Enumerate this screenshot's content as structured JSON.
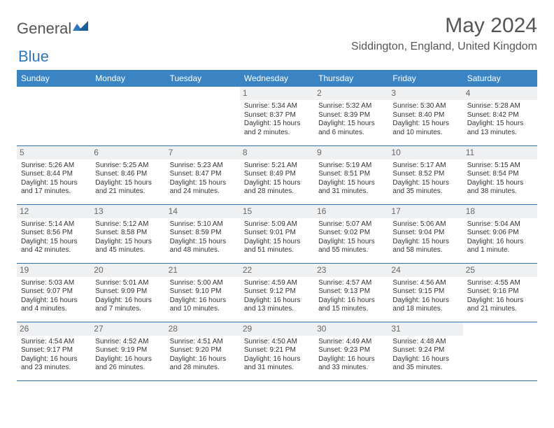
{
  "brand": {
    "word1": "General",
    "word2": "Blue"
  },
  "header": {
    "month_title": "May 2024",
    "location": "Siddington, England, United Kingdom"
  },
  "colors": {
    "header_bg": "#3b84c4",
    "header_text": "#ffffff",
    "daynum_bg": "#eef0f2",
    "daynum_text": "#666666",
    "row_border": "#2d6ea8",
    "body_text": "#333333",
    "brand_blue": "#2d78bd",
    "brand_gray": "#555555"
  },
  "weekdays": [
    "Sunday",
    "Monday",
    "Tuesday",
    "Wednesday",
    "Thursday",
    "Friday",
    "Saturday"
  ],
  "weeks": [
    [
      {
        "blank": true
      },
      {
        "blank": true
      },
      {
        "blank": true
      },
      {
        "day": "1",
        "sunrise": "Sunrise: 5:34 AM",
        "sunset": "Sunset: 8:37 PM",
        "dl1": "Daylight: 15 hours",
        "dl2": "and 2 minutes."
      },
      {
        "day": "2",
        "sunrise": "Sunrise: 5:32 AM",
        "sunset": "Sunset: 8:39 PM",
        "dl1": "Daylight: 15 hours",
        "dl2": "and 6 minutes."
      },
      {
        "day": "3",
        "sunrise": "Sunrise: 5:30 AM",
        "sunset": "Sunset: 8:40 PM",
        "dl1": "Daylight: 15 hours",
        "dl2": "and 10 minutes."
      },
      {
        "day": "4",
        "sunrise": "Sunrise: 5:28 AM",
        "sunset": "Sunset: 8:42 PM",
        "dl1": "Daylight: 15 hours",
        "dl2": "and 13 minutes."
      }
    ],
    [
      {
        "day": "5",
        "sunrise": "Sunrise: 5:26 AM",
        "sunset": "Sunset: 8:44 PM",
        "dl1": "Daylight: 15 hours",
        "dl2": "and 17 minutes."
      },
      {
        "day": "6",
        "sunrise": "Sunrise: 5:25 AM",
        "sunset": "Sunset: 8:46 PM",
        "dl1": "Daylight: 15 hours",
        "dl2": "and 21 minutes."
      },
      {
        "day": "7",
        "sunrise": "Sunrise: 5:23 AM",
        "sunset": "Sunset: 8:47 PM",
        "dl1": "Daylight: 15 hours",
        "dl2": "and 24 minutes."
      },
      {
        "day": "8",
        "sunrise": "Sunrise: 5:21 AM",
        "sunset": "Sunset: 8:49 PM",
        "dl1": "Daylight: 15 hours",
        "dl2": "and 28 minutes."
      },
      {
        "day": "9",
        "sunrise": "Sunrise: 5:19 AM",
        "sunset": "Sunset: 8:51 PM",
        "dl1": "Daylight: 15 hours",
        "dl2": "and 31 minutes."
      },
      {
        "day": "10",
        "sunrise": "Sunrise: 5:17 AM",
        "sunset": "Sunset: 8:52 PM",
        "dl1": "Daylight: 15 hours",
        "dl2": "and 35 minutes."
      },
      {
        "day": "11",
        "sunrise": "Sunrise: 5:15 AM",
        "sunset": "Sunset: 8:54 PM",
        "dl1": "Daylight: 15 hours",
        "dl2": "and 38 minutes."
      }
    ],
    [
      {
        "day": "12",
        "sunrise": "Sunrise: 5:14 AM",
        "sunset": "Sunset: 8:56 PM",
        "dl1": "Daylight: 15 hours",
        "dl2": "and 42 minutes."
      },
      {
        "day": "13",
        "sunrise": "Sunrise: 5:12 AM",
        "sunset": "Sunset: 8:58 PM",
        "dl1": "Daylight: 15 hours",
        "dl2": "and 45 minutes."
      },
      {
        "day": "14",
        "sunrise": "Sunrise: 5:10 AM",
        "sunset": "Sunset: 8:59 PM",
        "dl1": "Daylight: 15 hours",
        "dl2": "and 48 minutes."
      },
      {
        "day": "15",
        "sunrise": "Sunrise: 5:09 AM",
        "sunset": "Sunset: 9:01 PM",
        "dl1": "Daylight: 15 hours",
        "dl2": "and 51 minutes."
      },
      {
        "day": "16",
        "sunrise": "Sunrise: 5:07 AM",
        "sunset": "Sunset: 9:02 PM",
        "dl1": "Daylight: 15 hours",
        "dl2": "and 55 minutes."
      },
      {
        "day": "17",
        "sunrise": "Sunrise: 5:06 AM",
        "sunset": "Sunset: 9:04 PM",
        "dl1": "Daylight: 15 hours",
        "dl2": "and 58 minutes."
      },
      {
        "day": "18",
        "sunrise": "Sunrise: 5:04 AM",
        "sunset": "Sunset: 9:06 PM",
        "dl1": "Daylight: 16 hours",
        "dl2": "and 1 minute."
      }
    ],
    [
      {
        "day": "19",
        "sunrise": "Sunrise: 5:03 AM",
        "sunset": "Sunset: 9:07 PM",
        "dl1": "Daylight: 16 hours",
        "dl2": "and 4 minutes."
      },
      {
        "day": "20",
        "sunrise": "Sunrise: 5:01 AM",
        "sunset": "Sunset: 9:09 PM",
        "dl1": "Daylight: 16 hours",
        "dl2": "and 7 minutes."
      },
      {
        "day": "21",
        "sunrise": "Sunrise: 5:00 AM",
        "sunset": "Sunset: 9:10 PM",
        "dl1": "Daylight: 16 hours",
        "dl2": "and 10 minutes."
      },
      {
        "day": "22",
        "sunrise": "Sunrise: 4:59 AM",
        "sunset": "Sunset: 9:12 PM",
        "dl1": "Daylight: 16 hours",
        "dl2": "and 13 minutes."
      },
      {
        "day": "23",
        "sunrise": "Sunrise: 4:57 AM",
        "sunset": "Sunset: 9:13 PM",
        "dl1": "Daylight: 16 hours",
        "dl2": "and 15 minutes."
      },
      {
        "day": "24",
        "sunrise": "Sunrise: 4:56 AM",
        "sunset": "Sunset: 9:15 PM",
        "dl1": "Daylight: 16 hours",
        "dl2": "and 18 minutes."
      },
      {
        "day": "25",
        "sunrise": "Sunrise: 4:55 AM",
        "sunset": "Sunset: 9:16 PM",
        "dl1": "Daylight: 16 hours",
        "dl2": "and 21 minutes."
      }
    ],
    [
      {
        "day": "26",
        "sunrise": "Sunrise: 4:54 AM",
        "sunset": "Sunset: 9:17 PM",
        "dl1": "Daylight: 16 hours",
        "dl2": "and 23 minutes."
      },
      {
        "day": "27",
        "sunrise": "Sunrise: 4:52 AM",
        "sunset": "Sunset: 9:19 PM",
        "dl1": "Daylight: 16 hours",
        "dl2": "and 26 minutes."
      },
      {
        "day": "28",
        "sunrise": "Sunrise: 4:51 AM",
        "sunset": "Sunset: 9:20 PM",
        "dl1": "Daylight: 16 hours",
        "dl2": "and 28 minutes."
      },
      {
        "day": "29",
        "sunrise": "Sunrise: 4:50 AM",
        "sunset": "Sunset: 9:21 PM",
        "dl1": "Daylight: 16 hours",
        "dl2": "and 31 minutes."
      },
      {
        "day": "30",
        "sunrise": "Sunrise: 4:49 AM",
        "sunset": "Sunset: 9:23 PM",
        "dl1": "Daylight: 16 hours",
        "dl2": "and 33 minutes."
      },
      {
        "day": "31",
        "sunrise": "Sunrise: 4:48 AM",
        "sunset": "Sunset: 9:24 PM",
        "dl1": "Daylight: 16 hours",
        "dl2": "and 35 minutes."
      },
      {
        "blank": true
      }
    ]
  ]
}
